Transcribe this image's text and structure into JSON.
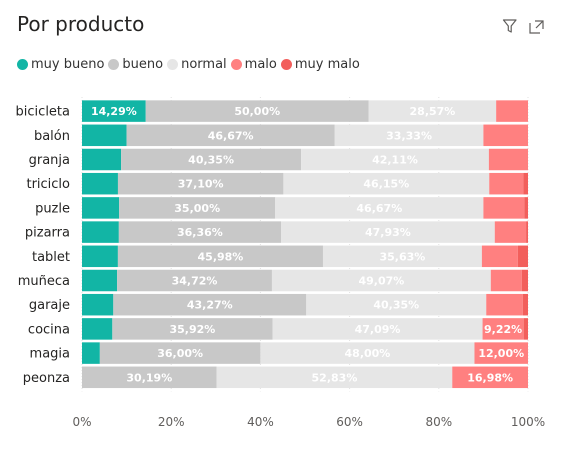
{
  "header": {
    "title": "Por producto",
    "filter_icon": "filter-icon",
    "focus_icon": "focus-mode-icon"
  },
  "chart_data": {
    "type": "bar",
    "orientation": "horizontal",
    "stacked": "100%",
    "legend_position": "top-left",
    "grid": true,
    "xlim": [
      0,
      100
    ],
    "x_ticks": [
      "0%",
      "20%",
      "40%",
      "60%",
      "80%",
      "100%"
    ],
    "categories": [
      "bicicleta",
      "balón",
      "granja",
      "triciclo",
      "puzle",
      "pizarra",
      "tablet",
      "muñeca",
      "garaje",
      "cocina",
      "magia",
      "peonza"
    ],
    "series": [
      {
        "name": "muy bueno",
        "color": "#12B5A5",
        "values": [
          14.29,
          10.0,
          8.77,
          8.06,
          8.33,
          8.26,
          8.05,
          7.87,
          7.02,
          6.8,
          4.0,
          0.0
        ],
        "labels": [
          "14,29%",
          "",
          "",
          "",
          "",
          "",
          "",
          "",
          "",
          "",
          "",
          ""
        ]
      },
      {
        "name": "bueno",
        "color": "#C8C8C8",
        "values": [
          50.0,
          46.67,
          40.35,
          37.1,
          35.0,
          36.36,
          45.98,
          34.72,
          43.27,
          35.92,
          36.0,
          30.19
        ],
        "labels": [
          "50,00%",
          "46,67%",
          "40,35%",
          "37,10%",
          "35,00%",
          "36,36%",
          "45,98%",
          "34,72%",
          "43,27%",
          "35,92%",
          "36,00%",
          "30,19%"
        ]
      },
      {
        "name": "normal",
        "color": "#E6E6E6",
        "values": [
          28.57,
          33.33,
          42.11,
          46.15,
          46.67,
          47.93,
          35.63,
          49.07,
          40.35,
          47.09,
          48.0,
          52.83
        ],
        "labels": [
          "28,57%",
          "33,33%",
          "42,11%",
          "46,15%",
          "46,67%",
          "47,93%",
          "35,63%",
          "49,07%",
          "40,35%",
          "47,09%",
          "48,00%",
          "52,83%"
        ]
      },
      {
        "name": "malo",
        "color": "#FF8080",
        "values": [
          7.14,
          10.0,
          8.77,
          7.66,
          9.17,
          7.02,
          8.05,
          6.94,
          8.19,
          9.22,
          12.0,
          16.98
        ],
        "labels": [
          "",
          "",
          "",
          "",
          "",
          "",
          "",
          "",
          "",
          "9,22%",
          "12,00%",
          "16,98%"
        ]
      },
      {
        "name": "muy malo",
        "color": "#F25F5C",
        "values": [
          0.0,
          0.0,
          0.0,
          1.03,
          0.83,
          0.43,
          2.29,
          1.4,
          1.17,
          0.97,
          0.0,
          0.0
        ],
        "labels": [
          "",
          "",
          "",
          "",
          "",
          "",
          "",
          "",
          "",
          "",
          "",
          ""
        ]
      }
    ]
  }
}
